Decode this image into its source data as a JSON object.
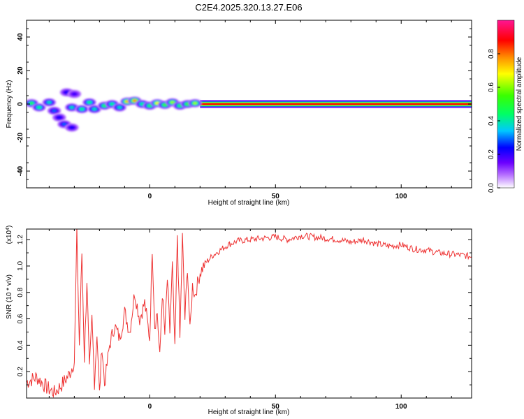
{
  "title": "C2E4.2025.320.13.27.E06",
  "chart_data": [
    {
      "type": "heatmap",
      "xlabel": "Height of straight line (km)",
      "ylabel": "Frequency (Hz)",
      "xlim": [
        -49,
        128
      ],
      "ylim": [
        -50,
        50
      ],
      "x_ticks": [
        0,
        50,
        100
      ],
      "y_ticks": [
        40,
        20,
        0,
        -20,
        -40
      ],
      "colorbar": {
        "label": "Normalized spectral amplitude",
        "range": [
          0,
          1
        ],
        "ticks": [
          "0.0",
          "0.2",
          "0.4",
          "0.6",
          "0.8"
        ],
        "colors": [
          "#ffffff",
          "#b36bff",
          "#6b00ff",
          "#0000ff",
          "#00c8ff",
          "#00ff66",
          "#39ff00",
          "#ffff00",
          "#ff8c00",
          "#ff0000",
          "#ff1493"
        ]
      },
      "blobs": [
        {
          "x": -47,
          "y": 0.5,
          "amp": 0.55
        },
        {
          "x": -44,
          "y": -2,
          "amp": 0.5
        },
        {
          "x": -40,
          "y": 1,
          "amp": 0.45
        },
        {
          "x": -38,
          "y": -4,
          "amp": 0.35
        },
        {
          "x": -36,
          "y": -8,
          "amp": 0.3
        },
        {
          "x": -34,
          "y": -12,
          "amp": 0.35
        },
        {
          "x": -31,
          "y": -14,
          "amp": 0.3
        },
        {
          "x": -33,
          "y": 7,
          "amp": 0.3
        },
        {
          "x": -30,
          "y": 6,
          "amp": 0.25
        },
        {
          "x": -31,
          "y": -2,
          "amp": 0.45
        },
        {
          "x": -27,
          "y": -3,
          "amp": 0.5
        },
        {
          "x": -24,
          "y": 1,
          "amp": 0.5
        },
        {
          "x": -22,
          "y": -3,
          "amp": 0.45
        },
        {
          "x": -18,
          "y": -1,
          "amp": 0.55
        },
        {
          "x": -15,
          "y": 0,
          "amp": 0.5
        },
        {
          "x": -12,
          "y": -2,
          "amp": 0.45
        },
        {
          "x": -9,
          "y": 1.5,
          "amp": 0.75
        },
        {
          "x": -6,
          "y": 2,
          "amp": 0.8
        },
        {
          "x": -3,
          "y": 0,
          "amp": 0.5
        },
        {
          "x": 0,
          "y": -1,
          "amp": 0.55
        },
        {
          "x": 3,
          "y": 0.5,
          "amp": 0.7
        },
        {
          "x": 6,
          "y": -0.5,
          "amp": 0.6
        },
        {
          "x": 9,
          "y": 1,
          "amp": 0.65
        },
        {
          "x": 12,
          "y": -1,
          "amp": 0.55
        },
        {
          "x": 15,
          "y": 0,
          "amp": 0.6
        },
        {
          "x": 18,
          "y": 0.5,
          "amp": 0.65
        }
      ],
      "band": {
        "x_start": 20,
        "x_end": 128,
        "y": 0,
        "amp": 0.9
      }
    },
    {
      "type": "line",
      "xlabel": "Height of straight line (km)",
      "ylabel": "SNR (10 * v/v)",
      "y_multiplier": "(x10",
      "y_multiplier_exp": "4",
      "y_multiplier_close": ")",
      "xlim": [
        -49,
        128
      ],
      "ylim": [
        0.0,
        1.28
      ],
      "x_ticks": [
        0,
        50,
        100
      ],
      "y_ticks": [
        0.2,
        0.4,
        0.6,
        0.8,
        1.0,
        1.2
      ],
      "y_tick_labels": [
        "0.2",
        "0.4",
        "0.6",
        "0.8",
        "1.0",
        "1.2"
      ],
      "color": "#ee3333",
      "x": [
        -49,
        -45,
        -41,
        -38,
        -35,
        -32,
        -30,
        -29,
        -28,
        -27,
        -26,
        -25,
        -24,
        -23,
        -22,
        -21,
        -20,
        -19,
        -18,
        -16,
        -14,
        -12,
        -10,
        -8,
        -6,
        -4,
        -2,
        0,
        1,
        2,
        3,
        4,
        5,
        6,
        7,
        8,
        9,
        10,
        11,
        12,
        13,
        14,
        15,
        16,
        17,
        18,
        20,
        22,
        25,
        28,
        31,
        35,
        40,
        45,
        50,
        55,
        60,
        65,
        70,
        75,
        80,
        85,
        90,
        95,
        100,
        105,
        110,
        115,
        120,
        125,
        128
      ],
      "y": [
        0.12,
        0.16,
        0.08,
        0.04,
        0.1,
        0.18,
        0.28,
        1.24,
        0.4,
        1.1,
        0.3,
        0.9,
        0.2,
        0.6,
        0.12,
        0.5,
        0.03,
        0.4,
        0.1,
        0.4,
        0.55,
        0.45,
        0.65,
        0.5,
        0.8,
        0.6,
        0.72,
        0.45,
        1.14,
        0.55,
        0.65,
        0.3,
        0.8,
        0.48,
        0.9,
        0.5,
        1.0,
        0.35,
        1.24,
        0.45,
        1.22,
        0.6,
        1.0,
        0.5,
        0.85,
        0.78,
        0.95,
        1.02,
        1.08,
        1.12,
        1.16,
        1.19,
        1.2,
        1.21,
        1.22,
        1.2,
        1.23,
        1.22,
        1.21,
        1.2,
        1.18,
        1.2,
        1.17,
        1.15,
        1.16,
        1.13,
        1.12,
        1.1,
        1.09,
        1.08,
        1.07
      ]
    }
  ]
}
